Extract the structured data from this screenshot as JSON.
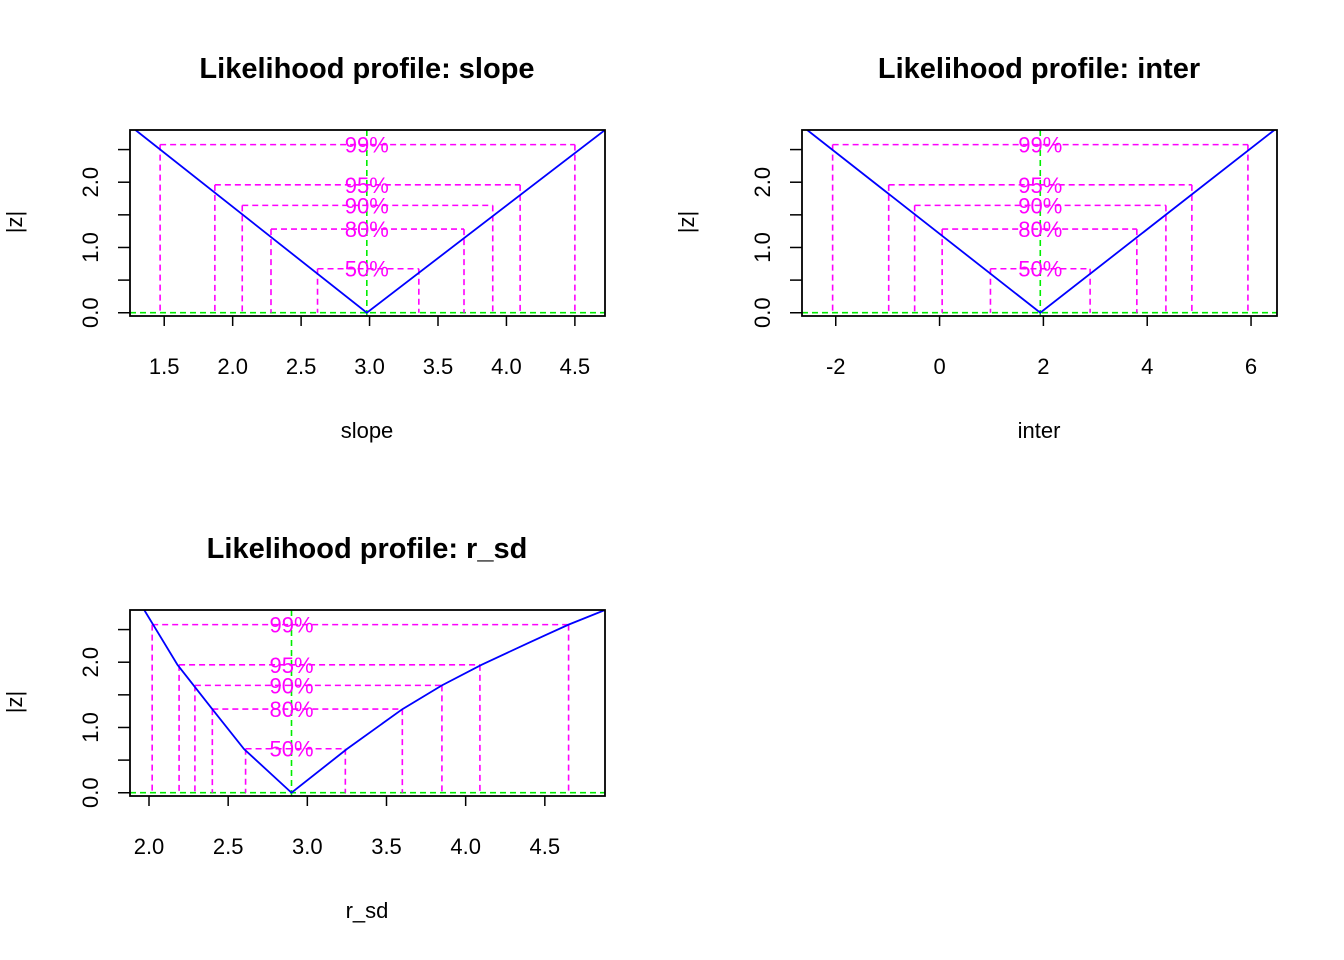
{
  "chart_data": [
    {
      "type": "line",
      "title": "Likelihood profile: slope",
      "xlabel": "slope",
      "ylabel": "|z|",
      "xlim": [
        1.25,
        4.72
      ],
      "ylim": [
        -0.05,
        2.8
      ],
      "xticks": [
        1.5,
        2.0,
        2.5,
        3.0,
        3.5,
        4.0,
        4.5
      ],
      "xtick_labels": [
        "1.5",
        "2.0",
        "2.5",
        "3.0",
        "3.5",
        "4.0",
        "4.5"
      ],
      "yticks": [
        0.0,
        0.5,
        1.0,
        1.5,
        2.0,
        2.5
      ],
      "ytick_labels": [
        "0.0",
        "",
        "1.0",
        "",
        "2.0",
        ""
      ],
      "mle": 2.98,
      "profile": {
        "x": [
          1.29,
          2.98,
          4.72
        ],
        "y": [
          2.8,
          0.0,
          2.8
        ]
      },
      "levels": [
        {
          "label": "99%",
          "z": 2.576,
          "lower": 1.47,
          "upper": 4.5
        },
        {
          "label": "95%",
          "z": 1.96,
          "lower": 1.87,
          "upper": 4.1
        },
        {
          "label": "90%",
          "z": 1.645,
          "lower": 2.07,
          "upper": 3.9
        },
        {
          "label": "80%",
          "z": 1.282,
          "lower": 2.28,
          "upper": 3.69
        },
        {
          "label": "50%",
          "z": 0.674,
          "lower": 2.62,
          "upper": 3.36
        }
      ],
      "colors": {
        "profile": "#0000ff",
        "conf": "#ff00ff",
        "mle": "#00ee00"
      }
    },
    {
      "type": "line",
      "title": "Likelihood profile: inter",
      "xlabel": "inter",
      "ylabel": "|z|",
      "xlim": [
        -2.65,
        6.5
      ],
      "ylim": [
        -0.05,
        2.8
      ],
      "xticks": [
        -2,
        0,
        2,
        4,
        6
      ],
      "xtick_labels": [
        "-2",
        "0",
        "2",
        "4",
        "6"
      ],
      "yticks": [
        0.0,
        0.5,
        1.0,
        1.5,
        2.0,
        2.5
      ],
      "ytick_labels": [
        "0.0",
        "",
        "1.0",
        "",
        "2.0",
        ""
      ],
      "mle": 1.94,
      "profile": {
        "x": [
          -2.55,
          1.94,
          6.45
        ],
        "y": [
          2.8,
          0.0,
          2.8
        ]
      },
      "levels": [
        {
          "label": "99%",
          "z": 2.576,
          "lower": -2.06,
          "upper": 5.94
        },
        {
          "label": "95%",
          "z": 1.96,
          "lower": -0.98,
          "upper": 4.86
        },
        {
          "label": "90%",
          "z": 1.645,
          "lower": -0.48,
          "upper": 4.36
        },
        {
          "label": "80%",
          "z": 1.282,
          "lower": 0.05,
          "upper": 3.8
        },
        {
          "label": "50%",
          "z": 0.674,
          "lower": 0.98,
          "upper": 2.9
        }
      ],
      "colors": {
        "profile": "#0000ff",
        "conf": "#ff00ff",
        "mle": "#00ee00"
      }
    },
    {
      "type": "line",
      "title": "Likelihood profile: r_sd",
      "xlabel": "r_sd",
      "ylabel": "|z|",
      "xlim": [
        1.88,
        4.88
      ],
      "ylim": [
        -0.05,
        2.8
      ],
      "xticks": [
        2.0,
        2.5,
        3.0,
        3.5,
        4.0,
        4.5
      ],
      "xtick_labels": [
        "2.0",
        "2.5",
        "3.0",
        "3.5",
        "4.0",
        "4.5"
      ],
      "yticks": [
        0.0,
        0.5,
        1.0,
        1.5,
        2.0,
        2.5
      ],
      "ytick_labels": [
        "0.0",
        "",
        "1.0",
        "",
        "2.0",
        ""
      ],
      "mle": 2.9,
      "profile": {
        "x": [
          1.97,
          2.18,
          2.4,
          2.6,
          2.9,
          3.25,
          3.6,
          3.85,
          4.1,
          4.4,
          4.65,
          4.88
        ],
        "y": [
          2.8,
          1.96,
          1.28,
          0.67,
          0.0,
          0.67,
          1.28,
          1.645,
          1.96,
          2.3,
          2.576,
          2.8
        ]
      },
      "levels": [
        {
          "label": "99%",
          "z": 2.576,
          "lower": 2.02,
          "upper": 4.65
        },
        {
          "label": "95%",
          "z": 1.96,
          "lower": 2.19,
          "upper": 4.09
        },
        {
          "label": "90%",
          "z": 1.645,
          "lower": 2.29,
          "upper": 3.85
        },
        {
          "label": "80%",
          "z": 1.282,
          "lower": 2.4,
          "upper": 3.6
        },
        {
          "label": "50%",
          "z": 0.674,
          "lower": 2.61,
          "upper": 3.24
        }
      ],
      "colors": {
        "profile": "#0000ff",
        "conf": "#ff00ff",
        "mle": "#00ee00"
      }
    }
  ]
}
